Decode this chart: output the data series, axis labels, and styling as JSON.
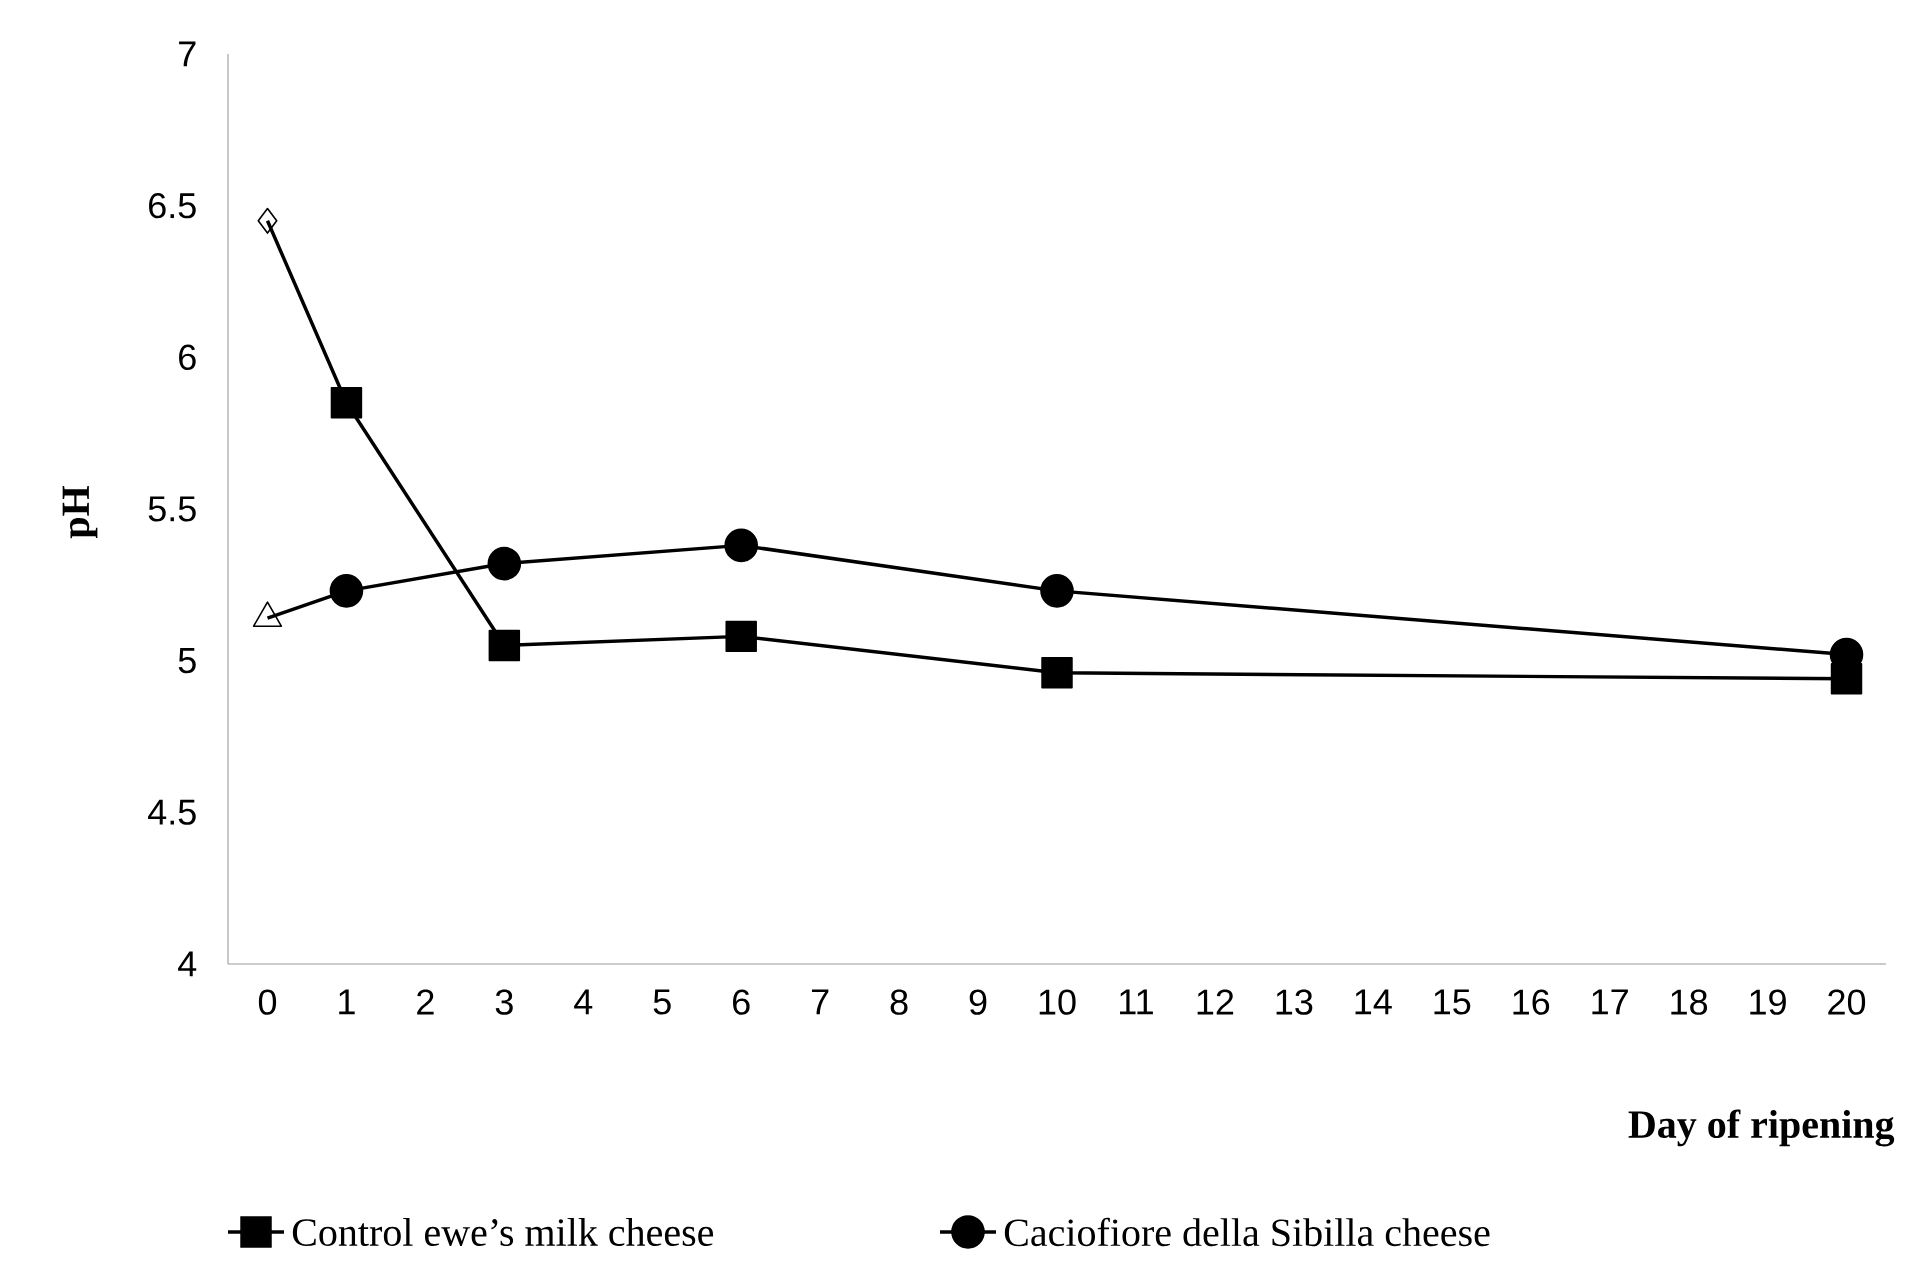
{
  "chart_data": {
    "type": "line",
    "xlabel": "Day of ripening",
    "ylabel": "pH",
    "x": [
      0,
      1,
      3,
      6,
      10,
      20
    ],
    "series": [
      {
        "name": "Control ewe’s milk cheese",
        "color": "#000000",
        "marker": "square",
        "values": [
          6.45,
          5.85,
          5.05,
          5.08,
          4.96,
          4.94
        ]
      },
      {
        "name": "Caciofiore della Sibilla cheese",
        "color": "#000000",
        "marker": "circle",
        "values": [
          5.14,
          5.23,
          5.32,
          5.38,
          5.23,
          5.02
        ]
      },
      {
        "type": "scatter",
        "color": "#000000",
        "marker": "diamond",
        "x": [
          0
        ],
        "values": [
          6.45
        ]
      },
      {
        "type": "scatter",
        "color": "#000000",
        "marker": "triangle",
        "x": [
          0
        ],
        "values": [
          5.14
        ]
      }
    ],
    "xlim": [
      -0.5,
      20.5
    ],
    "xticks": [
      0,
      1,
      2,
      3,
      4,
      5,
      6,
      7,
      8,
      9,
      10,
      11,
      12,
      13,
      14,
      15,
      16,
      17,
      18,
      19,
      20
    ],
    "ylim": [
      4,
      7
    ],
    "yticks": [
      4,
      4.5,
      5,
      5.5,
      6,
      6.5,
      7
    ],
    "grid": false,
    "legend": "bottom",
    "line_style": "solid"
  }
}
